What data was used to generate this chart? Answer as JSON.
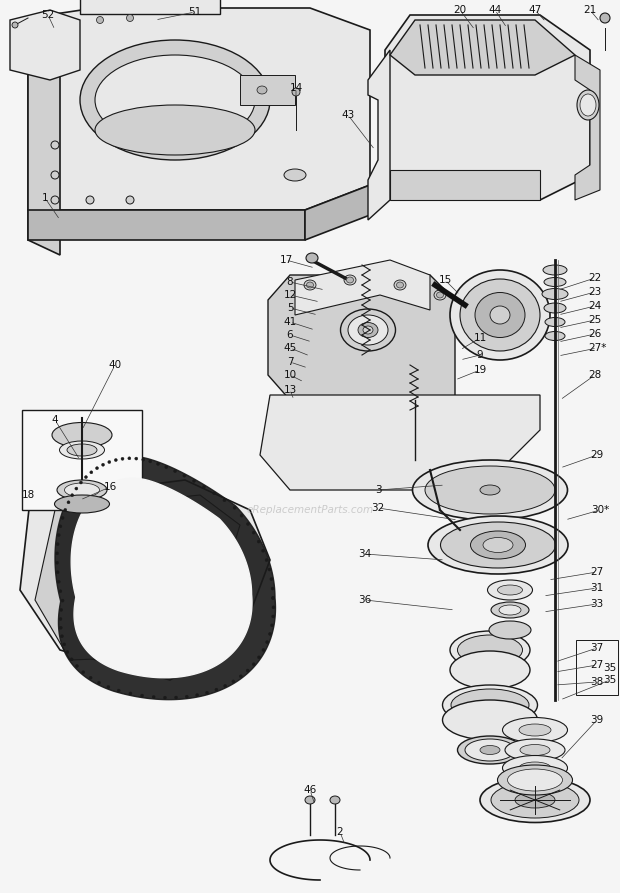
{
  "bg_color": "#f5f5f5",
  "fig_width": 6.2,
  "fig_height": 8.93,
  "watermark": "eReplacementParts.com",
  "line_color": "#1a1a1a",
  "fill_light": "#e8e8e8",
  "fill_mid": "#d0d0d0",
  "fill_dark": "#b8b8b8",
  "fill_white": "#f8f8f8"
}
